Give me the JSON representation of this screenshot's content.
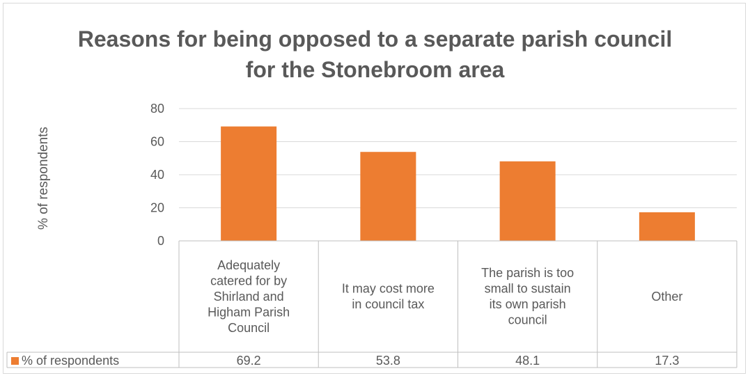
{
  "chart_data": {
    "type": "bar",
    "title_lines": [
      "Reasons for being opposed to a separate parish council",
      "for the Stonebroom area"
    ],
    "ylabel": "% of respondents",
    "xlabel": "",
    "ylim": [
      0,
      80
    ],
    "yticks": [
      0,
      20,
      40,
      60,
      80
    ],
    "grid": true,
    "categories": [
      [
        "Adequately",
        "catered for by",
        "Shirland and",
        "Higham Parish",
        "Council"
      ],
      [
        "It may cost more",
        "in council tax"
      ],
      [
        "The parish is too",
        "small to sustain",
        "its own parish",
        "council"
      ],
      [
        "Other"
      ]
    ],
    "series": [
      {
        "name": "% of respondents",
        "values": [
          69.2,
          53.8,
          48.1,
          17.3
        ],
        "color": "#ed7d31"
      }
    ],
    "data_table": true
  }
}
